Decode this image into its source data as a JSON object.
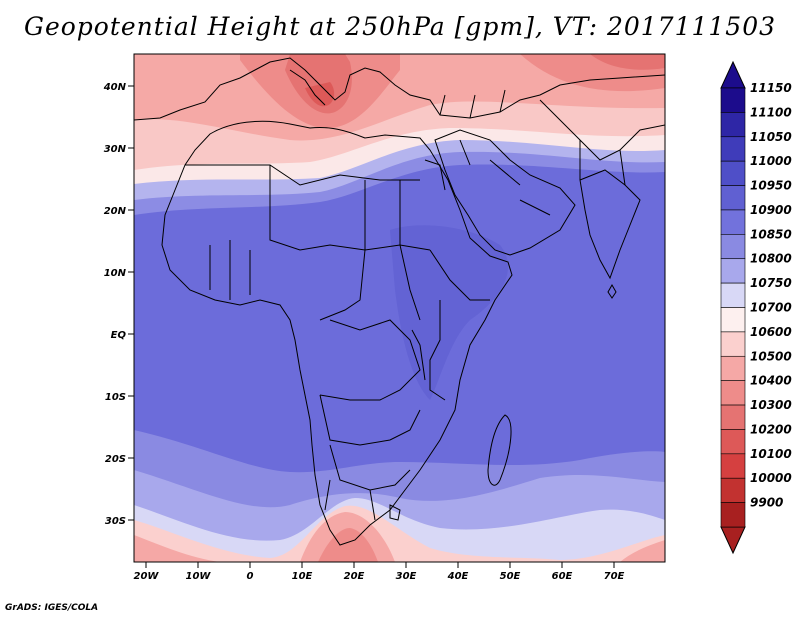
{
  "title": "Geopotential Height at 250hPa [gpm], VT: 2017111503",
  "credit": "GrADS: IGES/COLA",
  "map": {
    "lat_labels": [
      "40N",
      "30N",
      "20N",
      "10N",
      "EQ",
      "10S",
      "20S",
      "30S"
    ],
    "lon_labels": [
      "20W",
      "10W",
      "0",
      "10E",
      "20E",
      "30E",
      "40E",
      "50E",
      "60E",
      "70E"
    ]
  },
  "colorbar": {
    "labels": [
      "11150",
      "11100",
      "11050",
      "11000",
      "10950",
      "10900",
      "10850",
      "10800",
      "10750",
      "10700",
      "10600",
      "10500",
      "10400",
      "10300",
      "10200",
      "10100",
      "10000",
      "9900"
    ],
    "colors": [
      "#1c0c8c",
      "#2e26a6",
      "#3f3cba",
      "#4f4fc8",
      "#6060d2",
      "#7272dc",
      "#8a8ae2",
      "#a8a8ec",
      "#d8d8f6",
      "#fdf0ef",
      "#fbd0ce",
      "#f5a8a6",
      "#ee8c8a",
      "#e57372",
      "#dd5958",
      "#d54040",
      "#c23230",
      "#a82020"
    ]
  }
}
